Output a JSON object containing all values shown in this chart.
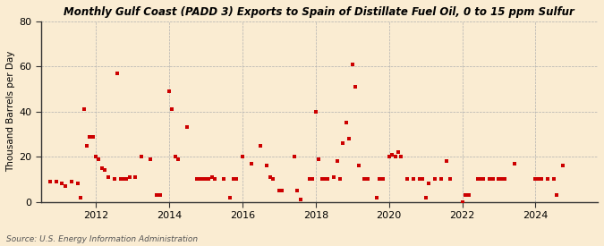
{
  "title": "Monthly Gulf Coast (PADD 3) Exports to Spain of Distillate Fuel Oil, 0 to 15 ppm Sulfur",
  "ylabel": "Thousand Barrels per Day",
  "source": "Source: U.S. Energy Information Administration",
  "background_color": "#faecd2",
  "dot_color": "#cc0000",
  "ylim": [
    0,
    80
  ],
  "yticks": [
    0,
    20,
    40,
    60,
    80
  ],
  "xlim_start": 2010.5,
  "xlim_end": 2025.7,
  "xticks": [
    2012,
    2014,
    2016,
    2018,
    2020,
    2022,
    2024
  ],
  "data": [
    [
      2010.75,
      9
    ],
    [
      2010.92,
      9
    ],
    [
      2011.08,
      8
    ],
    [
      2011.17,
      7
    ],
    [
      2011.33,
      9
    ],
    [
      2011.5,
      8
    ],
    [
      2011.58,
      2
    ],
    [
      2011.67,
      41
    ],
    [
      2011.75,
      25
    ],
    [
      2011.83,
      29
    ],
    [
      2011.92,
      29
    ],
    [
      2012.0,
      20
    ],
    [
      2012.08,
      19
    ],
    [
      2012.17,
      15
    ],
    [
      2012.25,
      14
    ],
    [
      2012.33,
      11
    ],
    [
      2012.5,
      10
    ],
    [
      2012.58,
      57
    ],
    [
      2012.67,
      10
    ],
    [
      2012.75,
      10
    ],
    [
      2012.83,
      10
    ],
    [
      2012.92,
      11
    ],
    [
      2013.08,
      11
    ],
    [
      2013.25,
      20
    ],
    [
      2013.5,
      19
    ],
    [
      2013.67,
      3
    ],
    [
      2013.75,
      3
    ],
    [
      2014.0,
      49
    ],
    [
      2014.08,
      41
    ],
    [
      2014.17,
      20
    ],
    [
      2014.25,
      19
    ],
    [
      2014.5,
      33
    ],
    [
      2014.75,
      10
    ],
    [
      2014.83,
      10
    ],
    [
      2014.92,
      10
    ],
    [
      2015.0,
      10
    ],
    [
      2015.08,
      10
    ],
    [
      2015.17,
      11
    ],
    [
      2015.25,
      10
    ],
    [
      2015.5,
      10
    ],
    [
      2015.67,
      2
    ],
    [
      2015.75,
      10
    ],
    [
      2015.83,
      10
    ],
    [
      2016.0,
      20
    ],
    [
      2016.25,
      17
    ],
    [
      2016.5,
      25
    ],
    [
      2016.67,
      16
    ],
    [
      2016.75,
      11
    ],
    [
      2016.83,
      10
    ],
    [
      2017.0,
      5
    ],
    [
      2017.08,
      5
    ],
    [
      2017.42,
      20
    ],
    [
      2017.5,
      5
    ],
    [
      2017.58,
      1
    ],
    [
      2017.83,
      10
    ],
    [
      2017.92,
      10
    ],
    [
      2018.0,
      40
    ],
    [
      2018.08,
      19
    ],
    [
      2018.17,
      10
    ],
    [
      2018.25,
      10
    ],
    [
      2018.33,
      10
    ],
    [
      2018.5,
      11
    ],
    [
      2018.58,
      18
    ],
    [
      2018.67,
      10
    ],
    [
      2018.75,
      26
    ],
    [
      2018.83,
      35
    ],
    [
      2018.92,
      28
    ],
    [
      2019.0,
      61
    ],
    [
      2019.08,
      51
    ],
    [
      2019.17,
      16
    ],
    [
      2019.33,
      10
    ],
    [
      2019.42,
      10
    ],
    [
      2019.67,
      2
    ],
    [
      2019.75,
      10
    ],
    [
      2019.83,
      10
    ],
    [
      2020.0,
      20
    ],
    [
      2020.08,
      21
    ],
    [
      2020.17,
      20
    ],
    [
      2020.25,
      22
    ],
    [
      2020.33,
      20
    ],
    [
      2020.5,
      10
    ],
    [
      2020.67,
      10
    ],
    [
      2020.83,
      10
    ],
    [
      2020.92,
      10
    ],
    [
      2021.0,
      2
    ],
    [
      2021.08,
      8
    ],
    [
      2021.25,
      10
    ],
    [
      2021.42,
      10
    ],
    [
      2021.58,
      18
    ],
    [
      2021.67,
      10
    ],
    [
      2022.0,
      0
    ],
    [
      2022.08,
      3
    ],
    [
      2022.17,
      3
    ],
    [
      2022.42,
      10
    ],
    [
      2022.5,
      10
    ],
    [
      2022.58,
      10
    ],
    [
      2022.75,
      10
    ],
    [
      2022.83,
      10
    ],
    [
      2023.0,
      10
    ],
    [
      2023.08,
      10
    ],
    [
      2023.17,
      10
    ],
    [
      2023.42,
      17
    ],
    [
      2024.0,
      10
    ],
    [
      2024.08,
      10
    ],
    [
      2024.17,
      10
    ],
    [
      2024.33,
      10
    ],
    [
      2024.5,
      10
    ],
    [
      2024.58,
      3
    ],
    [
      2024.75,
      16
    ]
  ]
}
